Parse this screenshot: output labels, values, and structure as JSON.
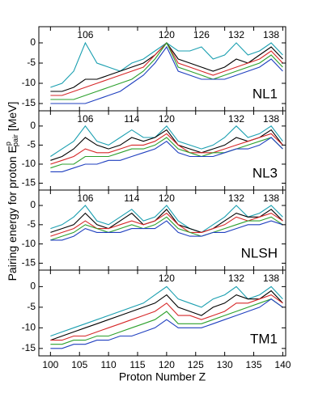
{
  "chart_data": [
    {
      "type": "line",
      "label": "NL1",
      "ylabel": [
        "Pairing energy for proton E",
        "p",
        "pair",
        " [MeV]"
      ],
      "annotations": [
        {
          "text": "106",
          "x": 106
        },
        {
          "text": "120",
          "x": 120
        },
        {
          "text": "126",
          "x": 126
        },
        {
          "text": "132",
          "x": 132
        },
        {
          "text": "138",
          "x": 138
        }
      ],
      "x": [
        100,
        102,
        104,
        106,
        108,
        110,
        112,
        114,
        116,
        118,
        120,
        122,
        124,
        126,
        128,
        130,
        132,
        134,
        136,
        138,
        140
      ],
      "xlim": [
        98,
        140.5
      ],
      "xticks": [
        100,
        105,
        110,
        115,
        120,
        125,
        130,
        135,
        140
      ],
      "ylim": [
        -16.8,
        4
      ],
      "yticks": [
        -15,
        -10,
        -5,
        0
      ],
      "series": [
        {
          "color": "#1a9fb0",
          "values": [
            -11,
            -10,
            -7,
            0,
            -5,
            -6,
            -7,
            -5,
            -4,
            -2,
            0,
            -2,
            -2,
            -1,
            -4,
            -3,
            0,
            -3,
            -2,
            0,
            -3
          ]
        },
        {
          "color": "#000000",
          "values": [
            -12,
            -12,
            -11,
            -9,
            -9,
            -8,
            -7,
            -6,
            -5,
            -3,
            0,
            -4,
            -5,
            -6,
            -7,
            -6,
            -4,
            -5,
            -3,
            -1,
            -4
          ]
        },
        {
          "color": "#d62728",
          "values": [
            -13,
            -13,
            -12,
            -11,
            -10,
            -9,
            -8,
            -7,
            -6,
            -3,
            0,
            -5,
            -6,
            -7,
            -8,
            -7,
            -6,
            -5,
            -4,
            -2,
            -5
          ]
        },
        {
          "color": "#2ca02c",
          "values": [
            -14,
            -14,
            -14,
            -13,
            -12,
            -11,
            -10,
            -9,
            -7,
            -4,
            0,
            -6,
            -7,
            -8,
            -9,
            -8,
            -7,
            -6,
            -5,
            -3,
            -6
          ]
        },
        {
          "color": "#1f3fbf",
          "values": [
            -15,
            -15,
            -15,
            -15,
            -14,
            -13,
            -12,
            -10,
            -8,
            -5,
            -1,
            -7,
            -8,
            -9,
            -9,
            -9,
            -8,
            -7,
            -6,
            -4,
            -7
          ]
        }
      ]
    },
    {
      "type": "line",
      "label": "NL3",
      "annotations": [
        {
          "text": "106",
          "x": 106
        },
        {
          "text": "114",
          "x": 114
        },
        {
          "text": "120",
          "x": 120
        },
        {
          "text": "132",
          "x": 132
        },
        {
          "text": "138",
          "x": 138
        }
      ],
      "x": [
        100,
        102,
        104,
        106,
        108,
        110,
        112,
        114,
        116,
        118,
        120,
        122,
        124,
        126,
        128,
        130,
        132,
        134,
        136,
        138,
        140
      ],
      "xlim": [
        98,
        140.5
      ],
      "xticks": [
        100,
        105,
        110,
        115,
        120,
        125,
        130,
        135,
        140
      ],
      "ylim": [
        -16.8,
        4
      ],
      "yticks": [
        -15,
        -10,
        -5,
        0
      ],
      "series": [
        {
          "color": "#1a9fb0",
          "values": [
            -8,
            -6,
            -4,
            0,
            -4,
            -5,
            -3,
            -1,
            -3,
            -3,
            0,
            -4,
            -5,
            -6,
            -5,
            -3,
            0,
            -3,
            -2,
            0,
            -4
          ]
        },
        {
          "color": "#000000",
          "values": [
            -9,
            -8,
            -6,
            -3,
            -5,
            -6,
            -5,
            -3,
            -4,
            -3,
            -1,
            -5,
            -6,
            -7,
            -6,
            -5,
            -3,
            -4,
            -3,
            -1,
            -5
          ]
        },
        {
          "color": "#d62728",
          "values": [
            -10,
            -9,
            -8,
            -6,
            -7,
            -7,
            -6,
            -5,
            -5,
            -4,
            -2,
            -5,
            -7,
            -7,
            -7,
            -6,
            -5,
            -4,
            -3,
            -2,
            -5
          ]
        },
        {
          "color": "#2ca02c",
          "values": [
            -11,
            -10,
            -10,
            -8,
            -8,
            -8,
            -7,
            -6,
            -6,
            -5,
            -3,
            -6,
            -7,
            -8,
            -7,
            -7,
            -6,
            -5,
            -4,
            -3,
            -6
          ]
        },
        {
          "color": "#1f3fbf",
          "values": [
            -12,
            -12,
            -11,
            -10,
            -10,
            -9,
            -9,
            -8,
            -7,
            -6,
            -4,
            -7,
            -8,
            -8,
            -8,
            -7,
            -6,
            -6,
            -5,
            -3,
            -6
          ]
        }
      ]
    },
    {
      "type": "line",
      "label": "NLSH",
      "annotations": [
        {
          "text": "106",
          "x": 106
        },
        {
          "text": "114",
          "x": 114
        },
        {
          "text": "120",
          "x": 120
        },
        {
          "text": "132",
          "x": 132
        },
        {
          "text": "138",
          "x": 138
        }
      ],
      "x": [
        100,
        102,
        104,
        106,
        108,
        110,
        112,
        114,
        116,
        118,
        120,
        122,
        124,
        126,
        128,
        130,
        132,
        134,
        136,
        138,
        140
      ],
      "xlim": [
        98,
        140.5
      ],
      "xticks": [
        100,
        105,
        110,
        115,
        120,
        125,
        130,
        135,
        140
      ],
      "ylim": [
        -16.8,
        4
      ],
      "yticks": [
        -15,
        -10,
        -5,
        0
      ],
      "series": [
        {
          "color": "#1a9fb0",
          "values": [
            -6,
            -5,
            -3,
            0,
            -4,
            -5,
            -3,
            -1,
            -4,
            -3,
            0,
            -4,
            -6,
            -7,
            -5,
            -3,
            0,
            -3,
            -2,
            0,
            -3
          ]
        },
        {
          "color": "#000000",
          "values": [
            -7,
            -6,
            -5,
            -2,
            -5,
            -6,
            -4,
            -2,
            -5,
            -4,
            -1,
            -5,
            -6,
            -7,
            -6,
            -4,
            -2,
            -3,
            -3,
            -1,
            -4
          ]
        },
        {
          "color": "#d62728",
          "values": [
            -8,
            -7,
            -6,
            -4,
            -6,
            -6,
            -5,
            -4,
            -5,
            -4,
            -2,
            -5,
            -7,
            -7,
            -6,
            -5,
            -3,
            -4,
            -3,
            -2,
            -4
          ]
        },
        {
          "color": "#2ca02c",
          "values": [
            -9,
            -8,
            -7,
            -5,
            -6,
            -7,
            -6,
            -5,
            -6,
            -5,
            -3,
            -6,
            -7,
            -8,
            -7,
            -6,
            -5,
            -4,
            -4,
            -3,
            -5
          ]
        },
        {
          "color": "#1f3fbf",
          "values": [
            -9,
            -9,
            -8,
            -6,
            -7,
            -7,
            -7,
            -6,
            -6,
            -6,
            -4,
            -7,
            -8,
            -8,
            -7,
            -7,
            -6,
            -5,
            -5,
            -4,
            -5
          ]
        }
      ]
    },
    {
      "type": "line",
      "label": "TM1",
      "xlabel": "Proton Number Z",
      "annotations": [
        {
          "text": "120",
          "x": 120
        },
        {
          "text": "132",
          "x": 132
        },
        {
          "text": "138",
          "x": 138
        }
      ],
      "x": [
        100,
        102,
        104,
        106,
        108,
        110,
        112,
        114,
        116,
        118,
        120,
        122,
        124,
        126,
        128,
        130,
        132,
        134,
        136,
        138,
        140
      ],
      "xlim": [
        98,
        140.5
      ],
      "xticks": [
        100,
        105,
        110,
        115,
        120,
        125,
        130,
        135,
        140
      ],
      "ylim": [
        -16.8,
        4
      ],
      "yticks": [
        -15,
        -10,
        -5,
        0
      ],
      "series": [
        {
          "color": "#1a9fb0",
          "values": [
            -12,
            -11,
            -10,
            -9,
            -8,
            -7,
            -6,
            -5,
            -4,
            -2,
            0,
            -3,
            -4,
            -5,
            -3,
            -2,
            0,
            -3,
            -2,
            0,
            -3
          ]
        },
        {
          "color": "#000000",
          "values": [
            -13,
            -12,
            -11,
            -10,
            -9,
            -8,
            -7,
            -6,
            -5,
            -4,
            -2,
            -5,
            -6,
            -7,
            -5,
            -4,
            -2,
            -3,
            -3,
            -1,
            -4
          ]
        },
        {
          "color": "#d62728",
          "values": [
            -13,
            -13,
            -12,
            -12,
            -11,
            -10,
            -9,
            -8,
            -7,
            -6,
            -4,
            -7,
            -7,
            -8,
            -7,
            -6,
            -4,
            -4,
            -3,
            -2,
            -4
          ]
        },
        {
          "color": "#2ca02c",
          "values": [
            -14,
            -14,
            -13,
            -13,
            -12,
            -12,
            -11,
            -10,
            -9,
            -8,
            -6,
            -9,
            -9,
            -9,
            -8,
            -7,
            -6,
            -5,
            -4,
            -3,
            -5
          ]
        },
        {
          "color": "#1f3fbf",
          "values": [
            -15,
            -15,
            -14,
            -14,
            -13,
            -13,
            -12,
            -12,
            -11,
            -10,
            -8,
            -10,
            -10,
            -10,
            -9,
            -8,
            -7,
            -6,
            -5,
            -3,
            -5
          ]
        }
      ]
    }
  ]
}
